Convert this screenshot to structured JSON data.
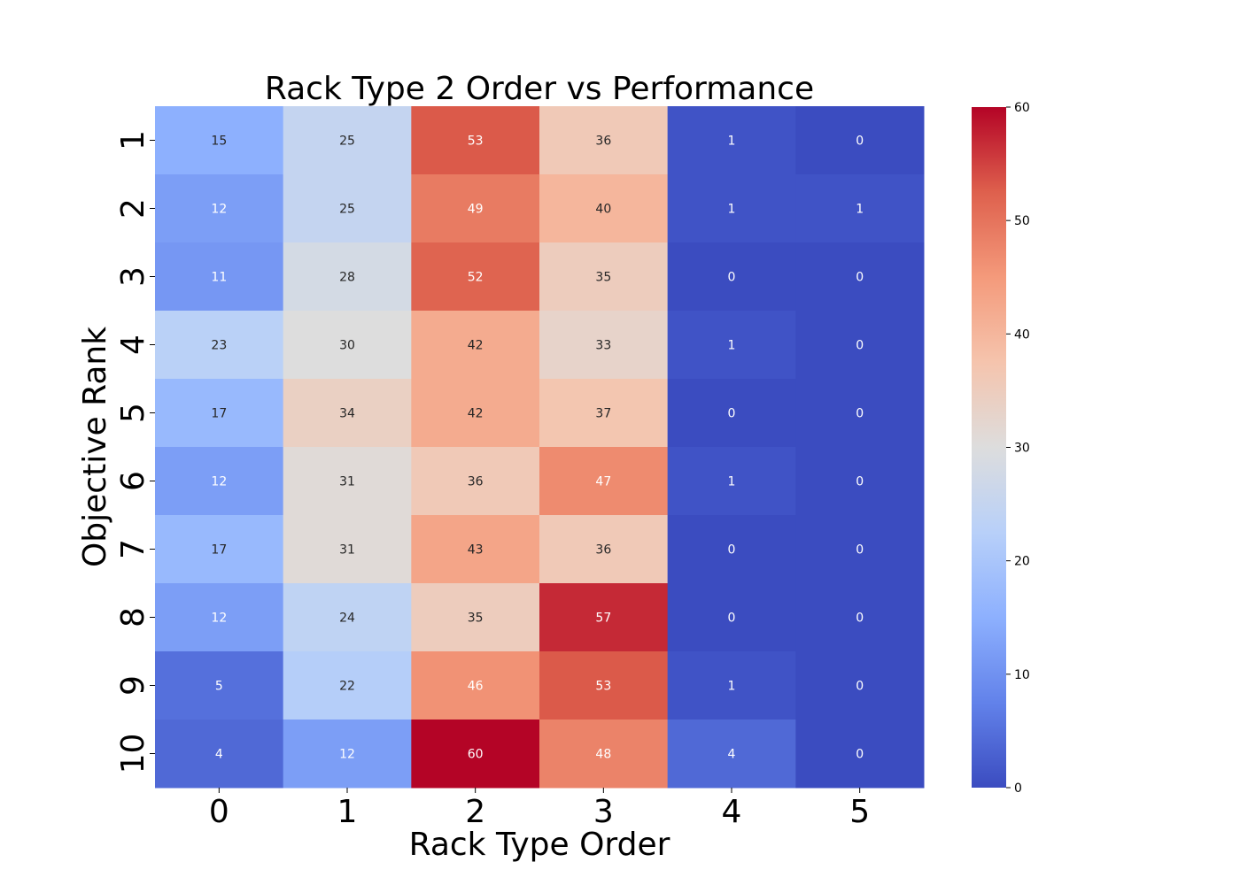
{
  "chart_data": {
    "type": "heatmap",
    "title": "Rack Type 2 Order vs Performance",
    "xlabel": "Rack Type Order",
    "ylabel": "Objective Rank",
    "x_categories": [
      "0",
      "1",
      "2",
      "3",
      "4",
      "5"
    ],
    "y_categories": [
      "1",
      "2",
      "3",
      "4",
      "5",
      "6",
      "7",
      "8",
      "9",
      "10"
    ],
    "values": [
      [
        15,
        25,
        53,
        36,
        1,
        0
      ],
      [
        12,
        25,
        49,
        40,
        1,
        1
      ],
      [
        11,
        28,
        52,
        35,
        0,
        0
      ],
      [
        23,
        30,
        42,
        33,
        1,
        0
      ],
      [
        17,
        34,
        42,
        37,
        0,
        0
      ],
      [
        12,
        31,
        36,
        47,
        1,
        0
      ],
      [
        17,
        31,
        43,
        36,
        0,
        0
      ],
      [
        12,
        24,
        35,
        57,
        0,
        0
      ],
      [
        5,
        22,
        46,
        53,
        1,
        0
      ],
      [
        4,
        12,
        60,
        48,
        4,
        0
      ]
    ],
    "colormap": "coolwarm",
    "value_range": [
      0,
      60
    ],
    "colorbar_ticks": [
      0,
      10,
      20,
      30,
      40,
      50,
      60
    ],
    "annotated": true,
    "grid": false
  }
}
